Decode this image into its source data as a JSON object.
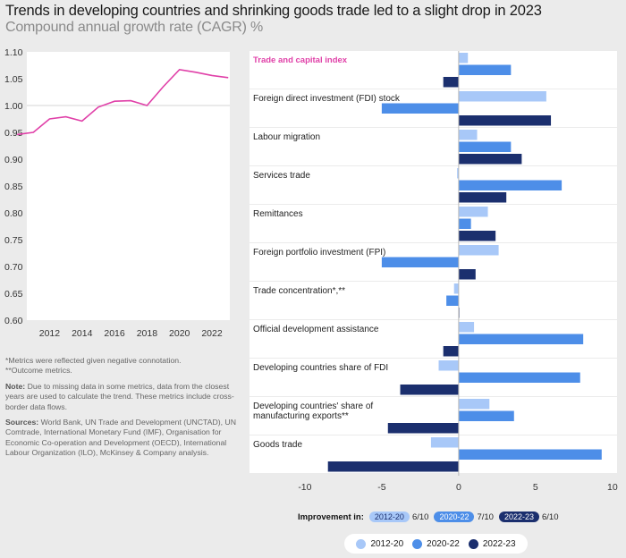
{
  "title": "Trends in developing countries and shrinking goods trade led to a slight drop in 2023",
  "subtitle": "Compound annual growth rate (CAGR) %",
  "colors": {
    "p1": "#a8c8f8",
    "p2": "#4d8ee8",
    "p3": "#1b2f6e",
    "line": "#e040a8",
    "accent": "#e040a8"
  },
  "chart_data": [
    {
      "type": "line",
      "x": [
        2010,
        2011,
        2012,
        2013,
        2014,
        2015,
        2016,
        2017,
        2018,
        2019,
        2020,
        2021,
        2022,
        2023
      ],
      "y": [
        0.946,
        0.95,
        0.975,
        0.979,
        0.971,
        0.997,
        1.008,
        1.009,
        1.0,
        1.035,
        1.067,
        1.062,
        1.056,
        1.052
      ],
      "xticks": [
        "2012",
        "2014",
        "2016",
        "2018",
        "2020",
        "2022"
      ],
      "yticks": [
        "1.10",
        "1.05",
        "1.00",
        "0.95",
        "0.90",
        "0.85",
        "0.80",
        "0.75",
        "0.70",
        "0.65",
        "0.60"
      ],
      "ylim": [
        0.6,
        1.1
      ],
      "xlim": [
        2010.6,
        2023.1
      ]
    },
    {
      "type": "bar",
      "orientation": "horizontal",
      "categories": [
        "Trade and capital index",
        "Foreign direct investment (FDI) stock",
        "Labour migration",
        "Services trade",
        "Remittances",
        "Foreign portfolio investment (FPI)",
        "Trade concentration*,**",
        "Official development assistance",
        "Developing countries share of FDI",
        "Developing countries' share of manufacturing exports**",
        "Goods trade"
      ],
      "series": [
        {
          "name": "2012-20",
          "values": [
            0.6,
            5.7,
            1.2,
            -0.1,
            1.9,
            2.6,
            -0.3,
            1.0,
            -1.3,
            2.0,
            -1.8
          ]
        },
        {
          "name": "2020-22",
          "values": [
            3.4,
            -5.0,
            3.4,
            6.7,
            0.8,
            -5.0,
            -0.8,
            8.1,
            7.9,
            3.6,
            9.3
          ]
        },
        {
          "name": "2022-23",
          "values": [
            -1.0,
            6.0,
            4.1,
            3.1,
            2.4,
            1.1,
            0.0,
            -1.0,
            -3.8,
            -4.6,
            -8.5
          ]
        }
      ],
      "xticks": [
        "-10",
        "-5",
        "0",
        "5",
        "10"
      ],
      "xlim": [
        -13.6,
        10.3
      ]
    }
  ],
  "notes": {
    "n1": "*Metrics were reflected given negative connotation.",
    "n2": "**Outcome metrics.",
    "note_label": "Note:",
    "note_text": " Due to missing data in some metrics, data from the closest years are used to calculate the trend. These metrics include cross-border data flows.",
    "sources_label": "Sources:",
    "sources_text": " World Bank, UN Trade and Development (UNCTAD), UN Comtrade, International Monetary Fund (IMF), Organisation for Economic Co-operation and Development (OECD), International Labour Organization (ILO), McKinsey & Company analysis."
  },
  "improvement": {
    "label": "Improvement in:",
    "items": [
      {
        "period": "2012-20",
        "score": "6/10"
      },
      {
        "period": "2020-22",
        "score": "7/10"
      },
      {
        "period": "2022-23",
        "score": "6/10"
      }
    ]
  }
}
